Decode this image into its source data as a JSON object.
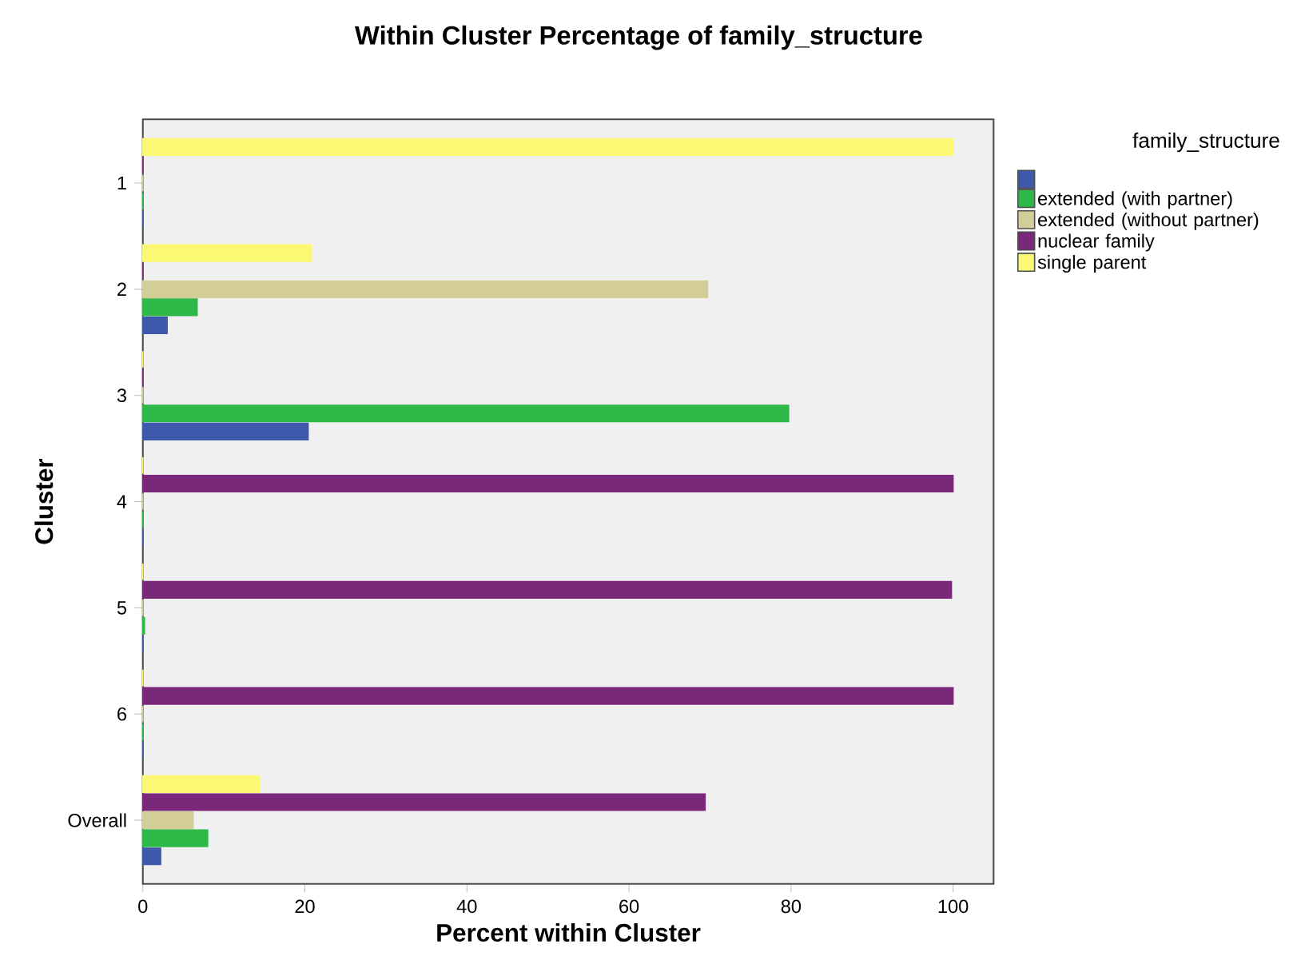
{
  "chart_data": {
    "type": "bar",
    "orientation": "horizontal",
    "title": "Within Cluster Percentage of family_structure",
    "xlabel": "Percent within Cluster",
    "ylabel": "Cluster",
    "legend_title": "family_structure",
    "legend": "right",
    "categories": [
      "1",
      "2",
      "3",
      "4",
      "5",
      "6",
      "Overall"
    ],
    "xlim": [
      0,
      105
    ],
    "xticks": [
      0,
      20,
      40,
      60,
      80,
      100
    ],
    "series": [
      {
        "name": "single parent",
        "color": "#fbf873",
        "values": [
          100,
          20.8,
          0,
          0,
          0,
          0,
          14.4
        ]
      },
      {
        "name": "nuclear family",
        "color": "#79287a",
        "values": [
          0,
          0,
          0,
          100,
          99.8,
          100,
          69.4
        ]
      },
      {
        "name": "extended (without partner)",
        "color": "#d3ce97",
        "values": [
          0,
          69.7,
          0,
          0,
          0,
          0,
          6.2
        ]
      },
      {
        "name": "extended (with partner)",
        "color": "#2eb848",
        "values": [
          0,
          6.7,
          79.7,
          0,
          0.2,
          0,
          8.0
        ]
      },
      {
        "color": "#3e58ac",
        "values": [
          0,
          3.0,
          20.4,
          0,
          0,
          0,
          2.2
        ]
      }
    ]
  }
}
